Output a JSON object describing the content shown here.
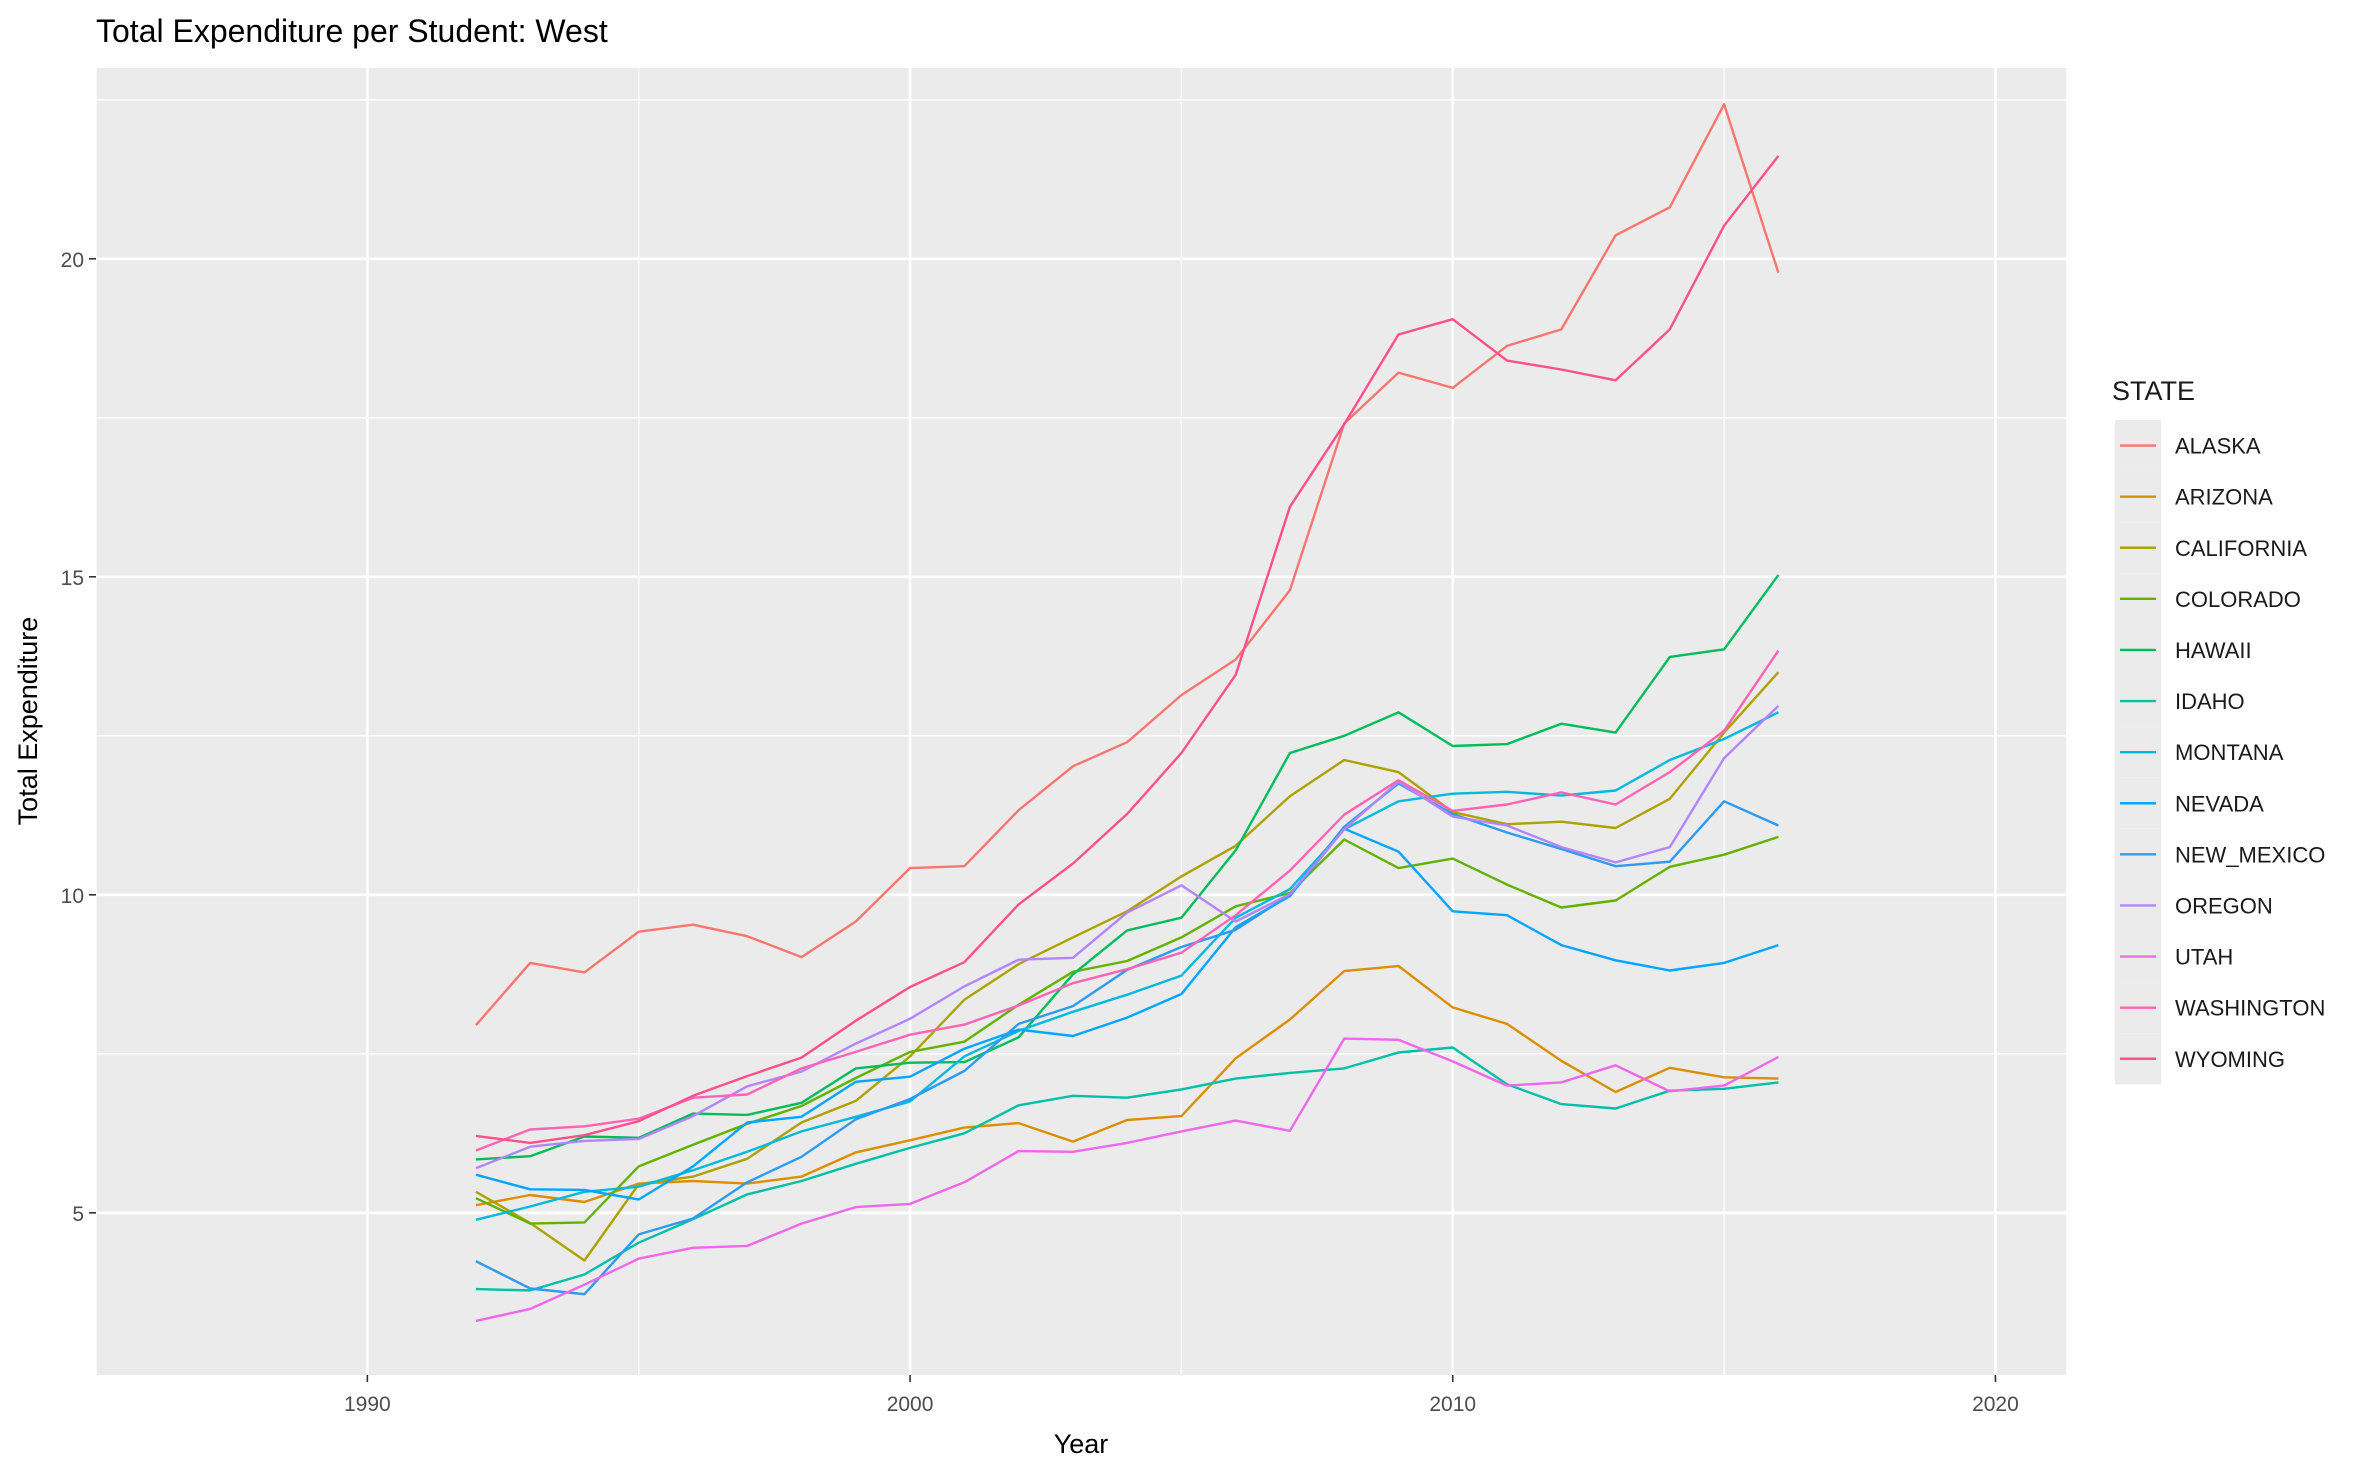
{
  "chart_data": {
    "type": "line",
    "title": "Total Expenditure per Student: West",
    "xlabel": "Year",
    "ylabel": "Total Expenditure",
    "xlim": [
      1985,
      2021.3
    ],
    "ylim": [
      2.45,
      23.0
    ],
    "x_ticks": [
      1990,
      2000,
      2010,
      2020
    ],
    "y_ticks": [
      5,
      10,
      15,
      20
    ],
    "x_minor": [
      1985,
      1995,
      2005,
      2015
    ],
    "y_minor": [
      7.5,
      12.5,
      17.5,
      22.5
    ],
    "grid": true,
    "legend_title": "STATE",
    "legend_position": "right",
    "x": [
      1992,
      1993,
      1994,
      1995,
      1996,
      1997,
      1998,
      1999,
      2000,
      2001,
      2002,
      2003,
      2004,
      2005,
      2006,
      2007,
      2008,
      2009,
      2010,
      2011,
      2012,
      2013,
      2014,
      2015,
      2016
    ],
    "series": [
      {
        "name": "ALASKA",
        "color": "#F8766D",
        "values": [
          7.95,
          8.93,
          8.78,
          9.42,
          9.53,
          9.35,
          9.02,
          9.58,
          10.42,
          10.45,
          11.33,
          12.02,
          12.4,
          13.14,
          13.7,
          14.79,
          17.41,
          18.21,
          17.97,
          18.63,
          18.89,
          20.37,
          20.81,
          22.43,
          19.78
        ]
      },
      {
        "name": "ARIZONA",
        "color": "#DB8E00",
        "values": [
          5.12,
          5.28,
          5.17,
          5.46,
          5.5,
          5.46,
          5.57,
          5.95,
          6.14,
          6.34,
          6.41,
          6.12,
          6.46,
          6.52,
          7.43,
          8.04,
          8.8,
          8.88,
          8.23,
          7.97,
          7.39,
          6.9,
          7.28,
          7.13,
          7.11
        ]
      },
      {
        "name": "CALIFORNIA",
        "color": "#AEA200",
        "values": [
          5.33,
          4.84,
          4.25,
          5.45,
          5.57,
          5.85,
          6.42,
          6.76,
          7.46,
          8.35,
          8.91,
          9.33,
          9.74,
          10.29,
          10.77,
          11.55,
          12.12,
          11.93,
          11.3,
          11.11,
          11.15,
          11.05,
          11.51,
          12.55,
          13.5
        ]
      },
      {
        "name": "COLORADO",
        "color": "#64B200",
        "values": [
          5.23,
          4.83,
          4.85,
          5.73,
          6.07,
          6.4,
          6.68,
          7.12,
          7.53,
          7.69,
          8.27,
          8.79,
          8.96,
          9.33,
          9.82,
          10.03,
          10.87,
          10.42,
          10.57,
          10.16,
          9.8,
          9.91,
          10.44,
          10.63,
          10.91
        ]
      },
      {
        "name": "HAWAII",
        "color": "#00BD5C",
        "values": [
          5.84,
          5.89,
          6.2,
          6.18,
          6.56,
          6.54,
          6.73,
          7.27,
          7.36,
          7.37,
          7.76,
          8.75,
          9.44,
          9.64,
          10.7,
          12.23,
          12.5,
          12.87,
          12.34,
          12.37,
          12.69,
          12.55,
          13.74,
          13.86,
          15.03
        ]
      },
      {
        "name": "IDAHO",
        "color": "#00C1A7",
        "values": [
          3.8,
          3.78,
          4.03,
          4.53,
          4.9,
          5.29,
          5.5,
          5.77,
          6.02,
          6.25,
          6.69,
          6.84,
          6.81,
          6.94,
          7.11,
          7.2,
          7.27,
          7.52,
          7.6,
          7.02,
          6.71,
          6.64,
          6.92,
          6.95,
          7.05
        ]
      },
      {
        "name": "MONTANA",
        "color": "#00BADE",
        "values": [
          4.89,
          5.1,
          5.33,
          5.41,
          5.67,
          5.96,
          6.28,
          6.51,
          6.75,
          7.46,
          7.86,
          8.16,
          8.43,
          8.73,
          9.64,
          10.09,
          11.03,
          11.47,
          11.59,
          11.62,
          11.56,
          11.64,
          12.12,
          12.45,
          12.87
        ]
      },
      {
        "name": "NEVADA",
        "color": "#00A6FF",
        "values": [
          5.6,
          5.37,
          5.36,
          5.21,
          5.73,
          6.42,
          6.51,
          7.06,
          7.14,
          7.58,
          7.88,
          7.78,
          8.07,
          8.44,
          9.49,
          9.98,
          11.04,
          10.68,
          9.74,
          9.68,
          9.21,
          8.97,
          8.81,
          8.93,
          9.21
        ]
      },
      {
        "name": "NEW_MEXICO",
        "color": "#2C9BF0",
        "values": [
          4.24,
          3.81,
          3.72,
          4.66,
          4.91,
          5.48,
          5.88,
          6.47,
          6.79,
          7.23,
          7.97,
          8.25,
          8.82,
          9.18,
          9.45,
          10.0,
          11.07,
          11.75,
          11.27,
          10.98,
          10.72,
          10.45,
          10.52,
          11.47,
          11.09
        ]
      },
      {
        "name": "OREGON",
        "color": "#B385FF",
        "values": [
          5.7,
          6.04,
          6.13,
          6.16,
          6.52,
          6.99,
          7.22,
          7.66,
          8.05,
          8.56,
          8.98,
          9.01,
          9.72,
          10.15,
          9.58,
          10.01,
          11.03,
          11.78,
          11.23,
          11.09,
          10.75,
          10.51,
          10.75,
          12.15,
          12.97
        ]
      },
      {
        "name": "UTAH",
        "color": "#EF67EB",
        "values": [
          3.3,
          3.49,
          3.87,
          4.28,
          4.45,
          4.48,
          4.83,
          5.09,
          5.14,
          5.48,
          5.97,
          5.96,
          6.1,
          6.28,
          6.45,
          6.29,
          7.74,
          7.72,
          7.38,
          7.0,
          7.05,
          7.32,
          6.91,
          7.0,
          7.45
        ]
      },
      {
        "name": "WASHINGTON",
        "color": "#FF63B6",
        "values": [
          5.98,
          6.31,
          6.36,
          6.48,
          6.81,
          6.86,
          7.27,
          7.53,
          7.8,
          7.96,
          8.26,
          8.61,
          8.83,
          9.09,
          9.68,
          10.38,
          11.26,
          11.8,
          11.32,
          11.42,
          11.61,
          11.42,
          11.93,
          12.58,
          13.84
        ]
      },
      {
        "name": "WYOMING",
        "color": "#FF4F8D",
        "values": [
          6.21,
          6.1,
          6.22,
          6.44,
          6.84,
          7.15,
          7.44,
          8.02,
          8.55,
          8.94,
          9.85,
          10.49,
          11.27,
          12.23,
          13.46,
          16.1,
          17.4,
          18.81,
          19.05,
          18.4,
          18.26,
          18.09,
          18.89,
          20.52,
          21.62
        ]
      }
    ]
  }
}
